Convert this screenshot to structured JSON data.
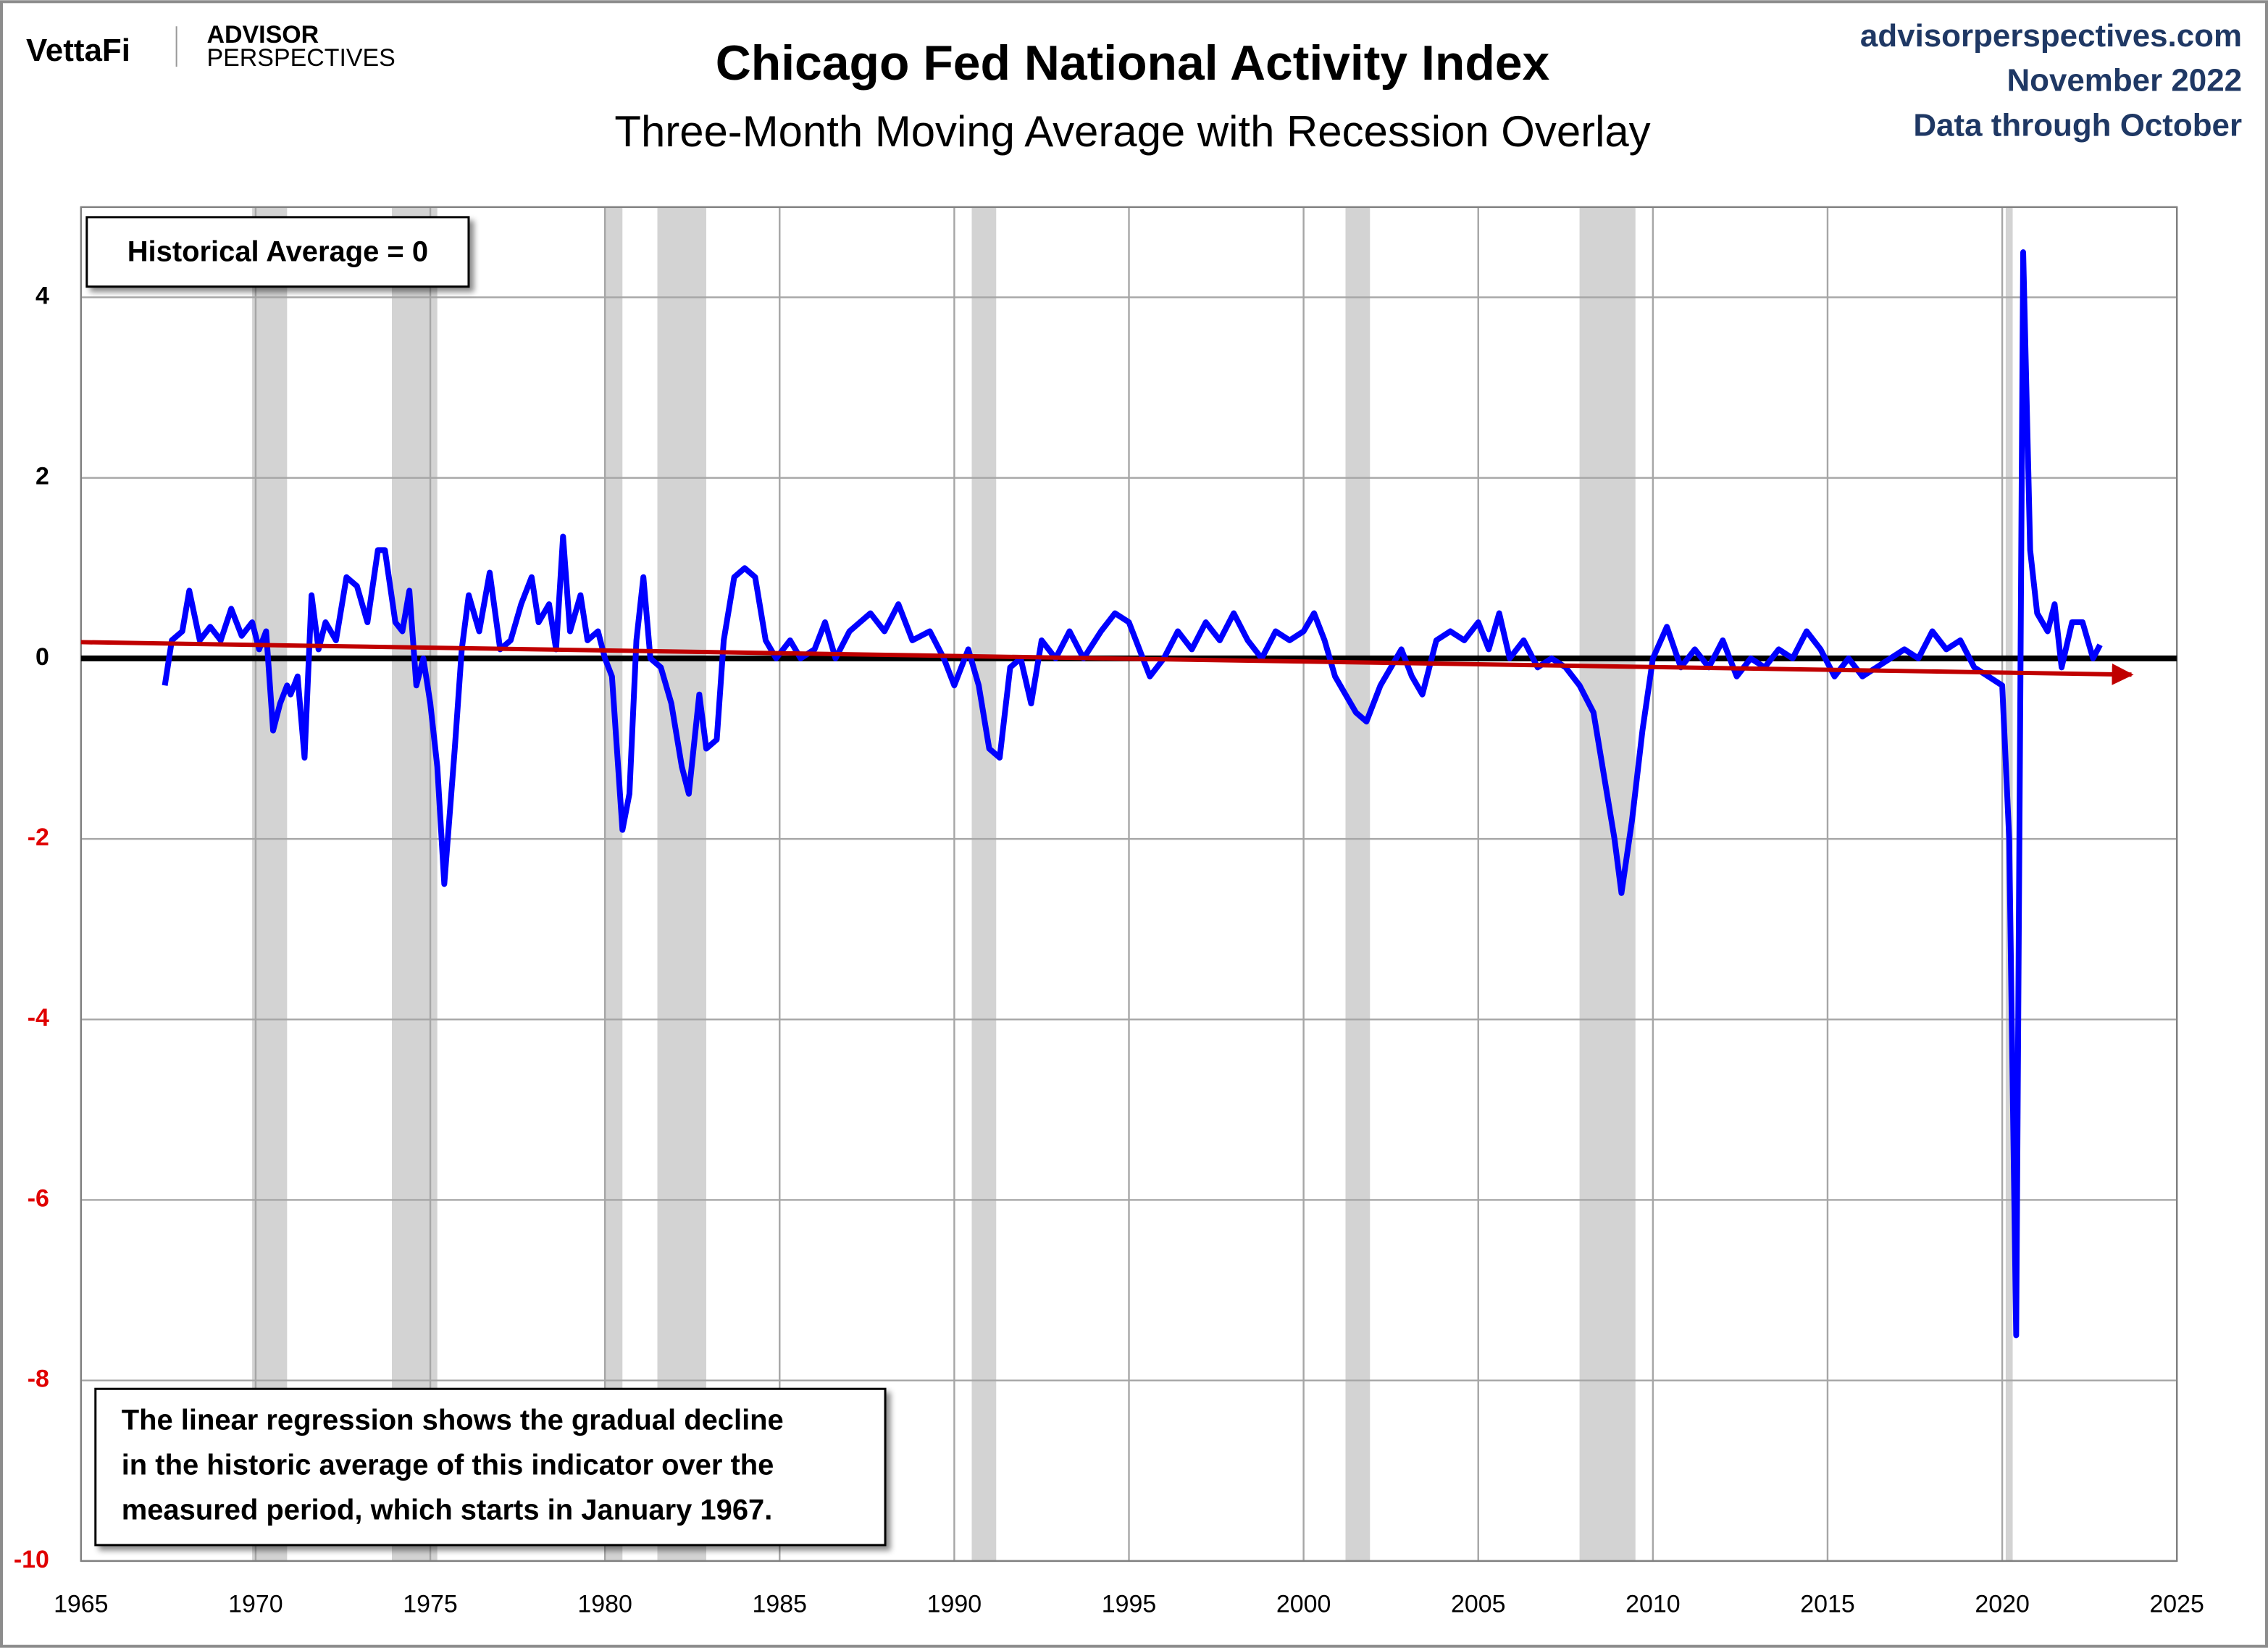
{
  "brand": {
    "logo": "VettaFi",
    "line1": "ADVISOR",
    "line2": "PERSPECTIVES"
  },
  "source": {
    "site": "advisorperspectives.com",
    "date": "November 2022",
    "data_through": "Data through October"
  },
  "chart_data": {
    "type": "line",
    "title": "Chicago Fed National Activity Index",
    "subtitle": "Three-Month Moving Average with Recession Overlay",
    "annotations": {
      "box": "Historical Average = 0",
      "note_lines": [
        "The linear regression shows the gradual decline",
        "in the historic average of this indicator over the",
        "measured period, which starts in January 1967."
      ]
    },
    "xlim": [
      1965,
      2025
    ],
    "xticks": [
      1965,
      1970,
      1975,
      1980,
      1985,
      1990,
      1995,
      2000,
      2005,
      2010,
      2015,
      2020,
      2025
    ],
    "ylim": [
      -10,
      5
    ],
    "yticks": [
      -10,
      -8,
      -6,
      -4,
      -2,
      0,
      2,
      4
    ],
    "grid": true,
    "zero_line": true,
    "recession_color": "#d3d3d3",
    "recessions": [
      [
        1969.9,
        1970.9
      ],
      [
        1973.9,
        1975.2
      ],
      [
        1980.0,
        1980.5
      ],
      [
        1981.5,
        1982.9
      ],
      [
        1990.5,
        1991.2
      ],
      [
        2001.2,
        2001.9
      ],
      [
        2007.9,
        2009.5
      ],
      [
        2020.1,
        2020.3
      ]
    ],
    "series": [
      {
        "color": "#0000ff",
        "x": [
          1967.4,
          1967.6,
          1967.9,
          1968.1,
          1968.4,
          1968.7,
          1969.0,
          1969.3,
          1969.6,
          1969.9,
          1970.1,
          1970.3,
          1970.5,
          1970.7,
          1970.9,
          1971.0,
          1971.2,
          1971.4,
          1971.6,
          1971.8,
          1972.0,
          1972.3,
          1972.6,
          1972.9,
          1973.2,
          1973.5,
          1973.7,
          1974.0,
          1974.2,
          1974.4,
          1974.6,
          1974.8,
          1975.0,
          1975.2,
          1975.4,
          1975.7,
          1975.9,
          1976.1,
          1976.4,
          1976.7,
          1977.0,
          1977.3,
          1977.6,
          1977.9,
          1978.1,
          1978.4,
          1978.6,
          1978.8,
          1979.0,
          1979.3,
          1979.5,
          1979.8,
          1980.0,
          1980.2,
          1980.5,
          1980.7,
          1980.9,
          1981.1,
          1981.3,
          1981.6,
          1981.9,
          1982.2,
          1982.4,
          1982.7,
          1982.9,
          1983.2,
          1983.4,
          1983.7,
          1984.0,
          1984.3,
          1984.6,
          1984.9,
          1985.3,
          1985.6,
          1986.0,
          1986.3,
          1986.6,
          1987.0,
          1987.3,
          1987.6,
          1988.0,
          1988.4,
          1988.8,
          1989.3,
          1989.7,
          1990.0,
          1990.4,
          1990.7,
          1991.0,
          1991.3,
          1991.6,
          1991.9,
          1992.2,
          1992.5,
          1992.9,
          1993.3,
          1993.7,
          1994.2,
          1994.6,
          1995.0,
          1995.3,
          1995.6,
          1996.0,
          1996.4,
          1996.8,
          1997.2,
          1997.6,
          1998.0,
          1998.4,
          1998.8,
          1999.2,
          1999.6,
          2000.0,
          2000.3,
          2000.6,
          2000.9,
          2001.2,
          2001.5,
          2001.8,
          2002.2,
          2002.5,
          2002.8,
          2003.1,
          2003.4,
          2003.8,
          2004.2,
          2004.6,
          2005.0,
          2005.3,
          2005.6,
          2005.9,
          2006.3,
          2006.7,
          2007.1,
          2007.5,
          2007.9,
          2008.3,
          2008.6,
          2008.9,
          2009.1,
          2009.4,
          2009.7,
          2010.0,
          2010.4,
          2010.8,
          2011.2,
          2011.6,
          2012.0,
          2012.4,
          2012.8,
          2013.2,
          2013.6,
          2014.0,
          2014.4,
          2014.8,
          2015.2,
          2015.6,
          2016.0,
          2016.4,
          2016.8,
          2017.2,
          2017.6,
          2018.0,
          2018.4,
          2018.8,
          2019.2,
          2019.6,
          2020.0,
          2020.2,
          2020.4,
          2020.6,
          2020.8,
          2021.0,
          2021.3,
          2021.5,
          2021.7,
          2022.0,
          2022.3,
          2022.6,
          2022.8
        ],
        "values": [
          -0.3,
          0.2,
          0.3,
          0.75,
          0.2,
          0.35,
          0.2,
          0.55,
          0.25,
          0.4,
          0.1,
          0.3,
          -0.8,
          -0.5,
          -0.3,
          -0.4,
          -0.2,
          -1.1,
          0.7,
          0.1,
          0.4,
          0.2,
          0.9,
          0.8,
          0.4,
          1.2,
          1.2,
          0.4,
          0.3,
          0.75,
          -0.3,
          0.0,
          -0.5,
          -1.2,
          -2.5,
          -1.0,
          0.1,
          0.7,
          0.3,
          0.95,
          0.1,
          0.2,
          0.6,
          0.9,
          0.4,
          0.6,
          0.1,
          1.35,
          0.3,
          0.7,
          0.2,
          0.3,
          0.0,
          -0.2,
          -1.9,
          -1.5,
          0.2,
          0.9,
          0.0,
          -0.1,
          -0.5,
          -1.2,
          -1.5,
          -0.4,
          -1.0,
          -0.9,
          0.2,
          0.9,
          1.0,
          0.9,
          0.2,
          0.0,
          0.2,
          0.0,
          0.1,
          0.4,
          0.0,
          0.3,
          0.4,
          0.5,
          0.3,
          0.6,
          0.2,
          0.3,
          0.0,
          -0.3,
          0.1,
          -0.3,
          -1.0,
          -1.1,
          -0.1,
          0.0,
          -0.5,
          0.2,
          0.0,
          0.3,
          0.0,
          0.3,
          0.5,
          0.4,
          0.1,
          -0.2,
          0.0,
          0.3,
          0.1,
          0.4,
          0.2,
          0.5,
          0.2,
          0.0,
          0.3,
          0.2,
          0.3,
          0.5,
          0.2,
          -0.2,
          -0.4,
          -0.6,
          -0.7,
          -0.3,
          -0.1,
          0.1,
          -0.2,
          -0.4,
          0.2,
          0.3,
          0.2,
          0.4,
          0.1,
          0.5,
          0.0,
          0.2,
          -0.1,
          0.0,
          -0.1,
          -0.3,
          -0.6,
          -1.3,
          -2.0,
          -2.6,
          -1.8,
          -0.8,
          0.0,
          0.35,
          -0.1,
          0.1,
          -0.1,
          0.2,
          -0.2,
          0.0,
          -0.1,
          0.1,
          0.0,
          0.3,
          0.1,
          -0.2,
          0.0,
          -0.2,
          -0.1,
          0.0,
          0.1,
          0.0,
          0.3,
          0.1,
          0.2,
          -0.1,
          -0.2,
          -0.3,
          -2.0,
          -7.5,
          4.5,
          1.2,
          0.5,
          0.3,
          0.6,
          -0.1,
          0.4,
          0.4,
          0.0,
          0.15
        ]
      },
      {
        "color": "#c00000",
        "arrow": true,
        "x": [
          1965,
          2023.7
        ],
        "values": [
          0.18,
          -0.18
        ]
      }
    ]
  }
}
